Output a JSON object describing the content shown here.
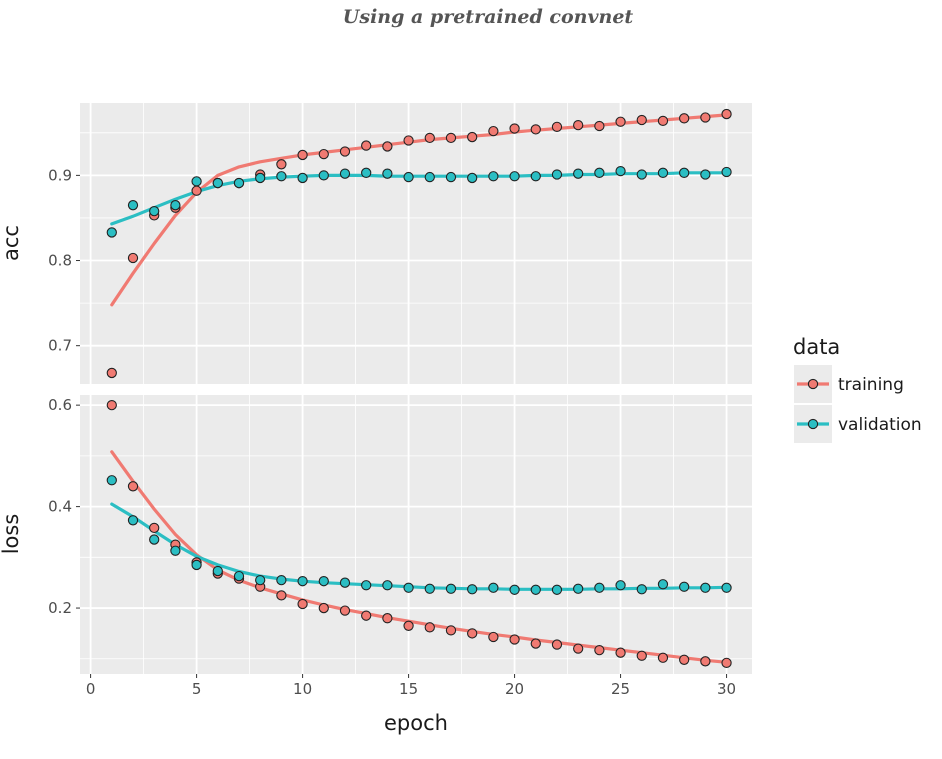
{
  "caption": "Using a pretrained convnet",
  "chart_data": [
    {
      "type": "scatter",
      "panel": "acc",
      "ylabel": "acc",
      "xlabel": "epoch",
      "xlim": [
        -0.5,
        31.2
      ],
      "ylim": [
        0.655,
        0.985
      ],
      "yticks": [
        0.7,
        0.8,
        0.9
      ],
      "ytick_labels": [
        "0.7",
        "0.8",
        "0.9"
      ],
      "grid": true,
      "smoothed_lines": true,
      "series": [
        {
          "name": "training",
          "color": "#F07A72",
          "x": [
            1,
            2,
            3,
            4,
            5,
            6,
            7,
            8,
            9,
            10,
            11,
            12,
            13,
            14,
            15,
            16,
            17,
            18,
            19,
            20,
            21,
            22,
            23,
            24,
            25,
            26,
            27,
            28,
            29,
            30
          ],
          "values": [
            0.668,
            0.803,
            0.853,
            0.862,
            0.882,
            0.891,
            0.891,
            0.901,
            0.913,
            0.924,
            0.925,
            0.928,
            0.935,
            0.934,
            0.941,
            0.944,
            0.944,
            0.945,
            0.952,
            0.955,
            0.954,
            0.957,
            0.959,
            0.958,
            0.963,
            0.965,
            0.964,
            0.967,
            0.968,
            0.972
          ],
          "smooth": [
            0.748,
            0.785,
            0.82,
            0.853,
            0.88,
            0.9,
            0.91,
            0.916,
            0.92,
            0.924,
            0.927,
            0.93,
            0.933,
            0.936,
            0.939,
            0.942,
            0.944,
            0.946,
            0.948,
            0.951,
            0.953,
            0.955,
            0.957,
            0.959,
            0.961,
            0.963,
            0.965,
            0.967,
            0.969,
            0.971
          ]
        },
        {
          "name": "validation",
          "color": "#2BBEC3",
          "x": [
            1,
            2,
            3,
            4,
            5,
            6,
            7,
            8,
            9,
            10,
            11,
            12,
            13,
            14,
            15,
            16,
            17,
            18,
            19,
            20,
            21,
            22,
            23,
            24,
            25,
            26,
            27,
            28,
            29,
            30
          ],
          "values": [
            0.833,
            0.865,
            0.858,
            0.865,
            0.893,
            0.891,
            0.891,
            0.897,
            0.899,
            0.897,
            0.9,
            0.902,
            0.903,
            0.902,
            0.898,
            0.898,
            0.898,
            0.897,
            0.899,
            0.899,
            0.899,
            0.901,
            0.902,
            0.903,
            0.905,
            0.901,
            0.903,
            0.903,
            0.901,
            0.904
          ],
          "smooth": [
            0.843,
            0.852,
            0.862,
            0.872,
            0.881,
            0.888,
            0.893,
            0.896,
            0.898,
            0.899,
            0.9,
            0.9,
            0.9,
            0.899,
            0.899,
            0.899,
            0.899,
            0.899,
            0.899,
            0.899,
            0.9,
            0.9,
            0.901,
            0.901,
            0.902,
            0.902,
            0.902,
            0.903,
            0.903,
            0.903
          ]
        }
      ]
    },
    {
      "type": "scatter",
      "panel": "loss",
      "ylabel": "loss",
      "xlabel": "epoch",
      "xlim": [
        -0.5,
        31.2
      ],
      "xticks": [
        0,
        5,
        10,
        15,
        20,
        25,
        30
      ],
      "xtick_labels": [
        "0",
        "5",
        "10",
        "15",
        "20",
        "25",
        "30"
      ],
      "ylim": [
        0.07,
        0.62
      ],
      "yticks": [
        0.2,
        0.4,
        0.6
      ],
      "ytick_labels": [
        "0.2",
        "0.4",
        "0.6"
      ],
      "grid": true,
      "smoothed_lines": true,
      "series": [
        {
          "name": "training",
          "color": "#F07A72",
          "x": [
            1,
            2,
            3,
            4,
            5,
            6,
            7,
            8,
            9,
            10,
            11,
            12,
            13,
            14,
            15,
            16,
            17,
            18,
            19,
            20,
            21,
            22,
            23,
            24,
            25,
            26,
            27,
            28,
            29,
            30
          ],
          "values": [
            0.6,
            0.44,
            0.358,
            0.325,
            0.29,
            0.268,
            0.258,
            0.242,
            0.225,
            0.208,
            0.2,
            0.195,
            0.185,
            0.18,
            0.165,
            0.162,
            0.156,
            0.15,
            0.143,
            0.138,
            0.13,
            0.128,
            0.12,
            0.117,
            0.112,
            0.106,
            0.102,
            0.098,
            0.095,
            0.092
          ],
          "smooth": [
            0.508,
            0.45,
            0.395,
            0.345,
            0.305,
            0.275,
            0.255,
            0.24,
            0.228,
            0.216,
            0.206,
            0.197,
            0.189,
            0.181,
            0.174,
            0.167,
            0.16,
            0.154,
            0.148,
            0.143,
            0.137,
            0.132,
            0.127,
            0.122,
            0.117,
            0.112,
            0.107,
            0.102,
            0.097,
            0.093
          ]
        },
        {
          "name": "validation",
          "color": "#2BBEC3",
          "x": [
            1,
            2,
            3,
            4,
            5,
            6,
            7,
            8,
            9,
            10,
            11,
            12,
            13,
            14,
            15,
            16,
            17,
            18,
            19,
            20,
            21,
            22,
            23,
            24,
            25,
            26,
            27,
            28,
            29,
            30
          ],
          "values": [
            0.452,
            0.373,
            0.335,
            0.313,
            0.285,
            0.273,
            0.263,
            0.255,
            0.255,
            0.253,
            0.253,
            0.25,
            0.245,
            0.245,
            0.24,
            0.238,
            0.238,
            0.237,
            0.24,
            0.236,
            0.236,
            0.236,
            0.238,
            0.24,
            0.245,
            0.237,
            0.247,
            0.242,
            0.24,
            0.24
          ],
          "smooth": [
            0.405,
            0.38,
            0.352,
            0.325,
            0.302,
            0.285,
            0.272,
            0.263,
            0.257,
            0.253,
            0.25,
            0.248,
            0.246,
            0.244,
            0.242,
            0.24,
            0.239,
            0.238,
            0.238,
            0.237,
            0.237,
            0.237,
            0.237,
            0.238,
            0.238,
            0.239,
            0.239,
            0.24,
            0.24,
            0.241
          ]
        }
      ]
    }
  ],
  "legend": {
    "title": "data",
    "items": [
      {
        "label": "training",
        "color": "#F07A72"
      },
      {
        "label": "validation",
        "color": "#2BBEC3"
      }
    ]
  },
  "style": {
    "panel_bg": "#EBEBEB",
    "grid_color": "#FFFFFF",
    "tick_color": "#333333"
  }
}
